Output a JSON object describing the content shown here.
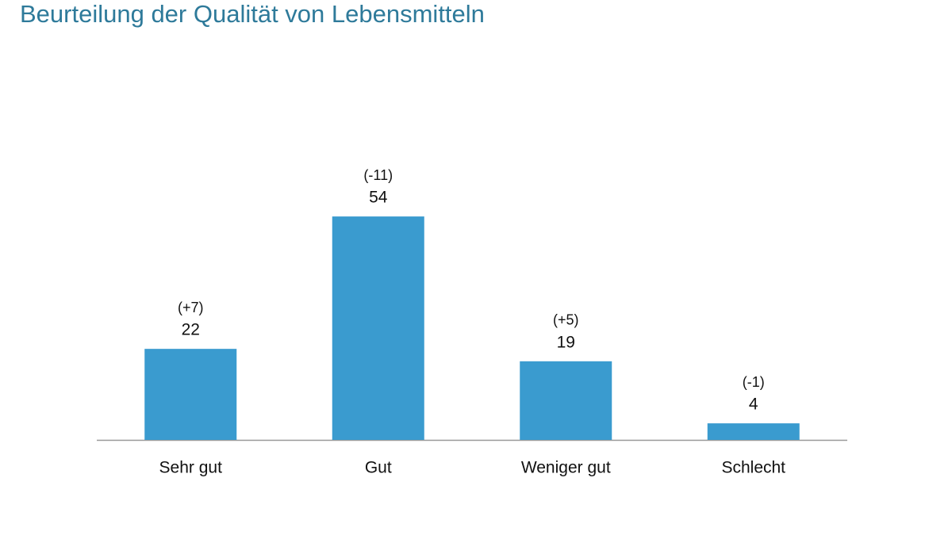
{
  "chart_data": {
    "type": "bar",
    "title": "Beurteilung der Qualität von Lebensmitteln",
    "categories": [
      "Sehr gut",
      "Gut",
      "Weniger gut",
      "Schlecht"
    ],
    "values": [
      22,
      54,
      19,
      4
    ],
    "annotations": [
      "(+7)",
      "(-11)",
      "(+5)",
      "(-1)"
    ],
    "color": "#3a9bcf"
  }
}
